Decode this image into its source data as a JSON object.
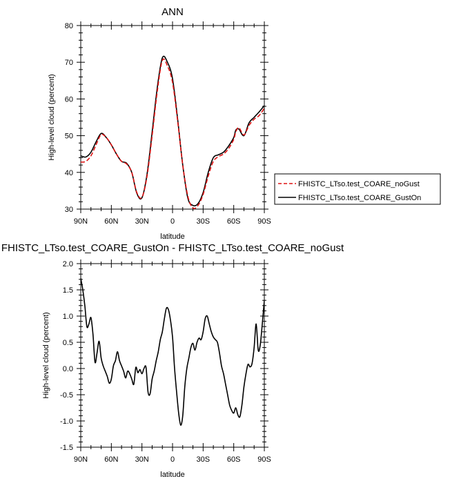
{
  "chart_data": [
    {
      "type": "line",
      "title": "ANN",
      "xlabel": "latitude",
      "ylabel": "High-level cloud (percent)",
      "x_ticks": [
        "90N",
        "60N",
        "30N",
        "0",
        "30S",
        "60S",
        "90S"
      ],
      "y_ticks": [
        "30",
        "40",
        "50",
        "60",
        "70",
        "80"
      ],
      "xlim": [
        90,
        -90
      ],
      "ylim": [
        30,
        80
      ],
      "legend_position": "right",
      "series": [
        {
          "name": "FHISTC_LTso.test_COARE_noGust",
          "color": "#dd1111",
          "dash": "dashed",
          "x": [
            90,
            85,
            80,
            75,
            70,
            65,
            60,
            55,
            50,
            45,
            40,
            35,
            30,
            25,
            20,
            15,
            10,
            5,
            0,
            -5,
            -10,
            -15,
            -20,
            -25,
            -30,
            -35,
            -40,
            -45,
            -50,
            -55,
            -60,
            -62,
            -65,
            -70,
            -75,
            -80,
            -85,
            -90
          ],
          "y": [
            42.8,
            43.0,
            44.5,
            47.5,
            50.3,
            49.5,
            47.5,
            45.0,
            43.0,
            42.3,
            40.0,
            34.5,
            33.2,
            39.0,
            50.0,
            62.0,
            70.5,
            69.0,
            64.5,
            54.0,
            42.0,
            33.5,
            30.3,
            31.0,
            34.0,
            39.0,
            43.0,
            44.3,
            45.0,
            46.5,
            49.0,
            51.0,
            52.2,
            50.2,
            52.8,
            54.5,
            55.5,
            57.5
          ]
        },
        {
          "name": "FHISTC_LTso.test_COARE_GustOn",
          "color": "#000000",
          "dash": "solid",
          "x": [
            90,
            85,
            80,
            75,
            70,
            65,
            60,
            55,
            50,
            45,
            40,
            35,
            30,
            25,
            20,
            15,
            10,
            5,
            0,
            -5,
            -10,
            -15,
            -20,
            -25,
            -30,
            -35,
            -40,
            -45,
            -50,
            -55,
            -60,
            -62,
            -65,
            -70,
            -75,
            -80,
            -85,
            -90
          ],
          "y": [
            44.5,
            44.2,
            45.5,
            48.3,
            50.6,
            49.5,
            47.5,
            45.0,
            43.0,
            42.5,
            40.0,
            34.3,
            33.1,
            39.5,
            51.0,
            63.0,
            71.2,
            70.0,
            65.5,
            54.5,
            42.0,
            33.0,
            31.0,
            31.5,
            34.5,
            40.0,
            44.0,
            44.8,
            45.5,
            47.2,
            49.5,
            51.5,
            51.8,
            50.0,
            53.5,
            55.0,
            56.5,
            58.2
          ]
        }
      ]
    },
    {
      "type": "line",
      "title": "FHISTC_LTso.test_COARE_GustOn - FHISTC_LTso.test_COARE_noGust",
      "xlabel": "latitude",
      "ylabel": "High-level cloud (percent)",
      "x_ticks": [
        "90N",
        "60N",
        "30N",
        "0",
        "30S",
        "60S",
        "90S"
      ],
      "y_ticks": [
        "-1.5",
        "-1.0",
        "-0.5",
        "0.0",
        "0.5",
        "1.0",
        "1.5",
        "2.0"
      ],
      "xlim": [
        90,
        -90
      ],
      "ylim": [
        -1.5,
        2.0
      ],
      "series": [
        {
          "color": "#000000",
          "x": [
            90,
            88,
            86,
            84,
            82,
            80,
            78,
            76,
            74,
            72,
            70,
            68,
            66,
            64,
            62,
            60,
            58,
            56,
            54,
            52,
            50,
            48,
            46,
            44,
            42,
            40,
            38,
            36,
            34,
            32,
            30,
            28,
            26,
            24,
            22,
            20,
            18,
            16,
            14,
            12,
            10,
            8,
            6,
            4,
            2,
            0,
            -2,
            -4,
            -6,
            -8,
            -10,
            -12,
            -14,
            -16,
            -18,
            -20,
            -22,
            -24,
            -26,
            -28,
            -30,
            -32,
            -34,
            -36,
            -38,
            -40,
            -42,
            -44,
            -46,
            -48,
            -50,
            -52,
            -54,
            -56,
            -58,
            -60,
            -62,
            -64,
            -66,
            -68,
            -70,
            -72,
            -74,
            -76,
            -78,
            -80,
            -82,
            -84,
            -86,
            -88,
            -90
          ],
          "y": [
            1.72,
            1.5,
            1.2,
            0.8,
            0.85,
            0.97,
            0.65,
            0.12,
            0.3,
            0.52,
            0.2,
            0.05,
            -0.05,
            -0.15,
            -0.28,
            -0.2,
            0.05,
            0.15,
            0.32,
            0.15,
            0.05,
            -0.05,
            -0.18,
            -0.05,
            -0.1,
            -0.2,
            -0.3,
            0.02,
            -0.08,
            -0.02,
            -0.1,
            0.0,
            0.02,
            -0.45,
            -0.48,
            -0.2,
            -0.05,
            0.15,
            0.32,
            0.55,
            0.7,
            0.95,
            1.15,
            1.12,
            0.92,
            0.6,
            0.0,
            -0.45,
            -0.85,
            -1.08,
            -0.9,
            -0.35,
            0.0,
            0.2,
            0.4,
            0.48,
            0.35,
            0.5,
            0.58,
            0.55,
            0.7,
            0.95,
            1.0,
            0.85,
            0.7,
            0.6,
            0.55,
            0.5,
            0.3,
            0.05,
            -0.1,
            -0.3,
            -0.5,
            -0.7,
            -0.8,
            -0.85,
            -0.75,
            -0.88,
            -0.92,
            -0.7,
            -0.35,
            -0.1,
            0.08,
            0.03,
            0.1,
            0.4,
            0.85,
            0.35,
            0.45,
            0.85,
            1.3
          ]
        }
      ]
    }
  ]
}
